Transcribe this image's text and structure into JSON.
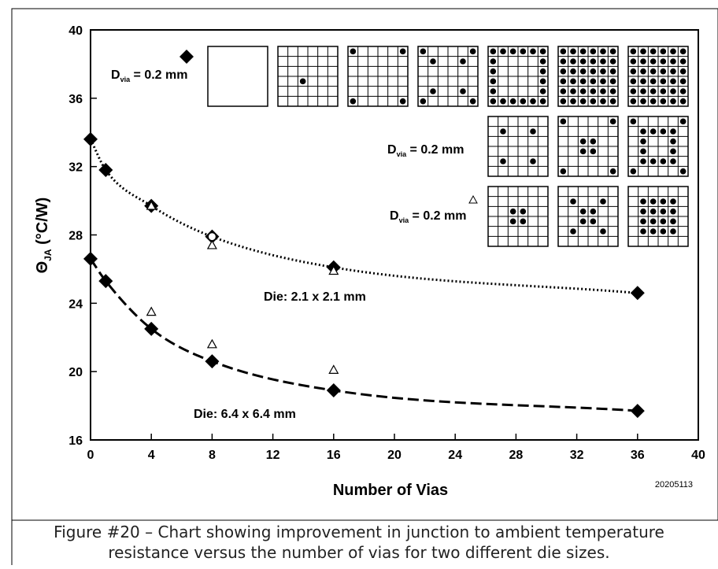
{
  "chart_data": {
    "type": "scatter",
    "xlabel": "Number of Vias",
    "ylabel": "ΘJA (°C/W)",
    "ylabel_main": "Θ",
    "ylabel_sub": "JA",
    "ylabel_rest": " (°C/W)",
    "xlim": [
      0,
      40
    ],
    "ylim": [
      16,
      40
    ],
    "xticks": [
      0,
      4,
      8,
      12,
      16,
      20,
      24,
      28,
      32,
      36,
      40
    ],
    "yticks": [
      16,
      20,
      24,
      28,
      32,
      36,
      40
    ],
    "grid": false,
    "series": [
      {
        "name": "Die: 2.1 x 2.1 mm",
        "marker": "diamond",
        "line": "dotted",
        "x": [
          0,
          1,
          4,
          8,
          16,
          36
        ],
        "y": [
          33.6,
          31.8,
          29.7,
          27.9,
          26.1,
          24.6
        ]
      },
      {
        "name": "Die: 6.4 x 6.4 mm",
        "marker": "diamond",
        "line": "dashed",
        "x": [
          0,
          1,
          4,
          8,
          16,
          36
        ],
        "y": [
          26.6,
          25.3,
          22.5,
          20.6,
          18.9,
          17.7
        ]
      },
      {
        "marker": "triangle-open",
        "x": [
          4,
          8,
          16,
          4,
          8,
          16
        ],
        "y": [
          29.7,
          27.4,
          25.9,
          23.5,
          21.6,
          20.1
        ]
      }
    ],
    "annotations": {
      "die_small": "Die: 2.1 x 2.1 mm",
      "die_large": "Die: 6.4 x 6.4 mm",
      "dvia_label_main": "D",
      "dvia_label_sub": "via",
      "dvia_label_rest": " = 0.2 mm"
    },
    "legend_grids": {
      "row1": [
        [],
        [
          [
            3,
            2
          ]
        ],
        [
          [
            0,
            0
          ],
          [
            0,
            5
          ],
          [
            5,
            0
          ],
          [
            5,
            5
          ]
        ],
        [
          [
            0,
            0
          ],
          [
            0,
            5
          ],
          [
            5,
            0
          ],
          [
            5,
            5
          ],
          [
            1,
            1
          ],
          [
            1,
            4
          ],
          [
            4,
            1
          ],
          [
            4,
            4
          ]
        ],
        [
          [
            0,
            0
          ],
          [
            0,
            1
          ],
          [
            0,
            2
          ],
          [
            0,
            3
          ],
          [
            0,
            4
          ],
          [
            0,
            5
          ],
          [
            1,
            0
          ],
          [
            1,
            5
          ],
          [
            2,
            0
          ],
          [
            2,
            5
          ],
          [
            3,
            0
          ],
          [
            3,
            5
          ],
          [
            4,
            0
          ],
          [
            4,
            5
          ],
          [
            5,
            0
          ],
          [
            5,
            1
          ],
          [
            5,
            2
          ],
          [
            5,
            3
          ],
          [
            5,
            4
          ],
          [
            5,
            5
          ]
        ],
        "all",
        "all"
      ],
      "row2": [
        [
          [
            1,
            1
          ],
          [
            1,
            4
          ],
          [
            4,
            1
          ],
          [
            4,
            4
          ]
        ],
        [
          [
            0,
            0
          ],
          [
            0,
            5
          ],
          [
            5,
            0
          ],
          [
            5,
            5
          ],
          [
            2,
            2
          ],
          [
            2,
            3
          ],
          [
            3,
            2
          ],
          [
            3,
            3
          ]
        ],
        [
          [
            0,
            0
          ],
          [
            0,
            5
          ],
          [
            5,
            0
          ],
          [
            5,
            5
          ],
          [
            1,
            1
          ],
          [
            1,
            2
          ],
          [
            1,
            3
          ],
          [
            2,
            1
          ],
          [
            2,
            4
          ],
          [
            3,
            1
          ],
          [
            3,
            4
          ],
          [
            4,
            2
          ],
          [
            4,
            3
          ],
          [
            1,
            4
          ],
          [
            4,
            1
          ],
          [
            4,
            4
          ]
        ]
      ],
      "row3": [
        [
          [
            2,
            2
          ],
          [
            2,
            3
          ],
          [
            3,
            2
          ],
          [
            3,
            3
          ]
        ],
        [
          [
            1,
            1
          ],
          [
            1,
            4
          ],
          [
            4,
            1
          ],
          [
            4,
            4
          ],
          [
            2,
            2
          ],
          [
            2,
            3
          ],
          [
            3,
            2
          ],
          [
            3,
            3
          ]
        ],
        [
          [
            1,
            1
          ],
          [
            1,
            2
          ],
          [
            1,
            3
          ],
          [
            1,
            4
          ],
          [
            2,
            1
          ],
          [
            2,
            2
          ],
          [
            2,
            3
          ],
          [
            2,
            4
          ],
          [
            3,
            1
          ],
          [
            3,
            2
          ],
          [
            3,
            3
          ],
          [
            3,
            4
          ],
          [
            4,
            1
          ],
          [
            4,
            2
          ],
          [
            4,
            3
          ],
          [
            4,
            4
          ]
        ]
      ]
    }
  },
  "figure_id": "20205113",
  "caption_line1": "Figure #20 – Chart showing improvement in junction to ambient temperature",
  "caption_line2": "resistance versus the number of vias for two different die sizes."
}
